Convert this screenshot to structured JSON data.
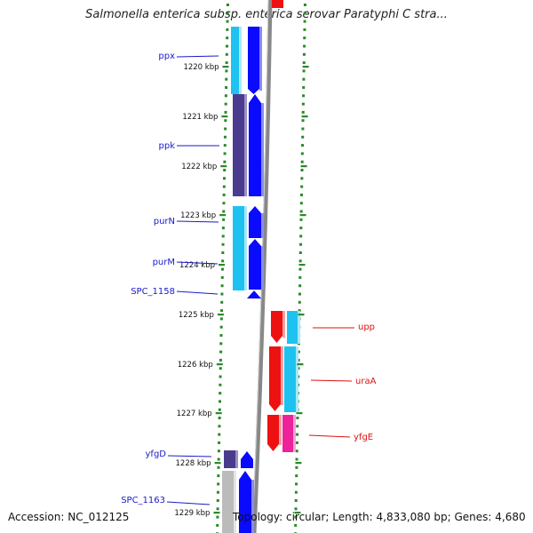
{
  "title": "Salmonella enterica subsp. enterica serovar Paratyphi C stra...",
  "footer": {
    "accession": "Accession: NC_012125",
    "topology": "Topology: circular; Length: 4,833,080 bp; Genes: 4,680"
  },
  "colors": {
    "forward_cds": "#0a0aff",
    "reverse_cds": "#ee1111",
    "blue_gene": "#1ec2f0",
    "purple_gene": "#4b3b8f",
    "magenta_gene": "#ee2299",
    "gray_gene": "#bbbbbb",
    "backbone": "#888888",
    "tick_marks": "#2a8a2a",
    "label_blue": "#1a1acc",
    "label_red": "#dd1111"
  },
  "axis_ticks": [
    "1220 kbp",
    "1221 kbp",
    "1222 kbp",
    "1223 kbp",
    "1224 kbp",
    "1225 kbp",
    "1226 kbp",
    "1227 kbp",
    "1228 kbp",
    "1229 kbp"
  ],
  "gene_labels": [
    {
      "name": "ppx",
      "strand": "left"
    },
    {
      "name": "ppk",
      "strand": "left"
    },
    {
      "name": "purN",
      "strand": "left"
    },
    {
      "name": "purM",
      "strand": "left"
    },
    {
      "name": "SPC_1158",
      "strand": "left"
    },
    {
      "name": "upp",
      "strand": "right"
    },
    {
      "name": "uraA",
      "strand": "right"
    },
    {
      "name": "yfgE",
      "strand": "right"
    },
    {
      "name": "yfgD",
      "strand": "left"
    },
    {
      "name": "SPC_1163",
      "strand": "left"
    }
  ]
}
